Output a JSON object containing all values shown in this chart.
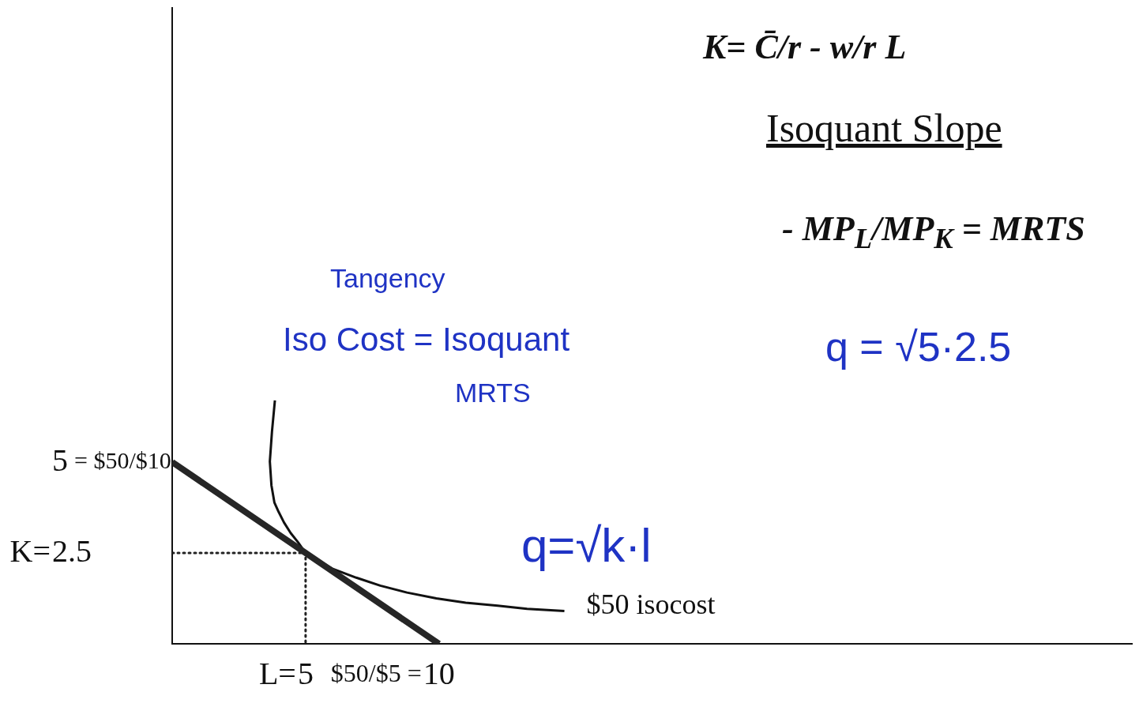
{
  "chart_data": {
    "type": "line",
    "xlim": [
      0,
      36
    ],
    "xticks": [
      5,
      10
    ],
    "ylim": [
      0,
      17.5
    ],
    "yticks": [
      2.5,
      5
    ],
    "marker": "none",
    "series": [
      {
        "color": "#262626",
        "x": [
          0,
          10
        ],
        "values": [
          5,
          0
        ]
      },
      {
        "color": "#111111",
        "x": [
          3.85,
          3.74,
          3.66,
          3.72,
          3.83,
          3.99,
          4.19,
          4.44,
          4.72,
          5,
          5.45,
          6.0,
          6.9,
          7.8,
          8.8,
          9.9,
          11.0,
          12.2,
          13.3,
          14.7
        ],
        "values": [
          6.7,
          5.84,
          5.02,
          4.36,
          3.89,
          3.63,
          3.34,
          3.05,
          2.79,
          2.5,
          2.3,
          2.07,
          1.82,
          1.6,
          1.41,
          1.25,
          1.13,
          1.05,
          0.96,
          0.9
        ]
      },
      {
        "color": "#222222",
        "line_style": "dotted",
        "x": [
          0,
          5,
          5
        ],
        "values": [
          2.5,
          2.5,
          0
        ]
      }
    ],
    "annotations": [
      "K= C̄/r - w/r L",
      "Isoquant Slope",
      "- MP$_{L}$/MP$_{K}$ = MRTS",
      "Tangency",
      "Iso Cost = Isoquant",
      "MRTS",
      "q = √5·2.5",
      "q=√k·l",
      {
        "text": "$50 isocost",
        "x": 14.7,
        "y": 0.9
      },
      "K=",
      "= $50/$10",
      "L=",
      "$50/$5 ="
    ]
  }
}
